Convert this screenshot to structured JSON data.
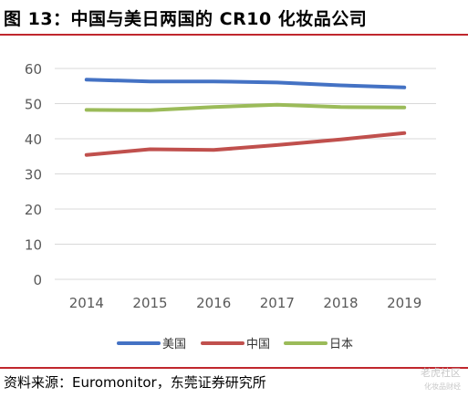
{
  "figure": {
    "title": "图 13：中国与美日两国的 CR10 化妆品公司",
    "source": "资料来源：Euromonitor，东莞证券研究所"
  },
  "watermark": {
    "text": "老虎社区",
    "sub": "化妆品财经"
  },
  "chart_data": {
    "type": "line",
    "title": "",
    "xlabel": "",
    "ylabel": "",
    "categories": [
      "2014",
      "2015",
      "2016",
      "2017",
      "2018",
      "2019"
    ],
    "ylim": [
      0,
      60
    ],
    "yticks": [
      0,
      10,
      20,
      30,
      40,
      50,
      60
    ],
    "grid": true,
    "legend_position": "bottom",
    "series": [
      {
        "name": "美国",
        "color": "#4472c4",
        "values": [
          56.8,
          56.3,
          56.3,
          56.0,
          55.2,
          54.6
        ]
      },
      {
        "name": "中国",
        "color": "#c0504d",
        "values": [
          35.4,
          37.0,
          36.8,
          38.2,
          39.8,
          41.6
        ]
      },
      {
        "name": "日本",
        "color": "#9bbb59",
        "values": [
          48.2,
          48.1,
          49.0,
          49.7,
          49.0,
          48.9
        ]
      }
    ]
  }
}
